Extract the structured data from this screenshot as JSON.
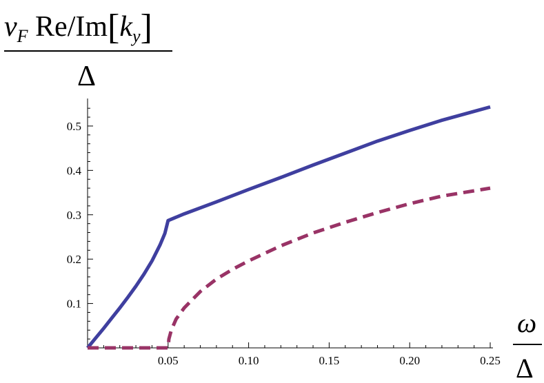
{
  "chart_data": {
    "type": "line",
    "ylabel": {
      "prefix_var": "v",
      "prefix_sub": "F",
      "mid": " Re/Im",
      "bracket_open": "[",
      "var": "k",
      "var_sub": "y",
      "bracket_close": "]",
      "denominator": "Δ"
    },
    "xlabel": {
      "numerator": "ω",
      "denominator": "Δ"
    },
    "xlim": [
      0,
      0.25
    ],
    "ylim": [
      0,
      0.55
    ],
    "x_ticks": [
      {
        "value": 0.05,
        "label": "0.05"
      },
      {
        "value": 0.1,
        "label": "0.10"
      },
      {
        "value": 0.15,
        "label": "0.15"
      },
      {
        "value": 0.2,
        "label": "0.20"
      },
      {
        "value": 0.25,
        "label": "0.25"
      }
    ],
    "y_ticks": [
      {
        "value": 0.1,
        "label": "0.1"
      },
      {
        "value": 0.2,
        "label": "0.2"
      },
      {
        "value": 0.3,
        "label": "0.3"
      },
      {
        "value": 0.4,
        "label": "0.4"
      },
      {
        "value": 0.5,
        "label": "0.5"
      }
    ],
    "grid": false,
    "series": [
      {
        "style": "solid",
        "color": "#3f3f9f",
        "x": [
          0,
          0.005,
          0.01,
          0.015,
          0.02,
          0.025,
          0.03,
          0.035,
          0.04,
          0.045,
          0.048,
          0.05,
          0.06,
          0.08,
          0.1,
          0.12,
          0.14,
          0.16,
          0.18,
          0.2,
          0.22,
          0.24,
          0.25
        ],
        "y": [
          0,
          0.022,
          0.044,
          0.067,
          0.09,
          0.114,
          0.139,
          0.166,
          0.196,
          0.232,
          0.258,
          0.287,
          0.302,
          0.329,
          0.357,
          0.384,
          0.412,
          0.439,
          0.466,
          0.49,
          0.513,
          0.533,
          0.543
        ]
      },
      {
        "style": "dashed",
        "color": "#993366",
        "x": [
          0,
          0.05,
          0.0505,
          0.052,
          0.055,
          0.06,
          0.07,
          0.08,
          0.09,
          0.1,
          0.12,
          0.14,
          0.16,
          0.18,
          0.2,
          0.22,
          0.24,
          0.25
        ],
        "y": [
          0,
          0,
          0.02,
          0.04,
          0.065,
          0.09,
          0.127,
          0.155,
          0.177,
          0.196,
          0.23,
          0.259,
          0.283,
          0.305,
          0.325,
          0.342,
          0.354,
          0.36
        ]
      }
    ]
  }
}
